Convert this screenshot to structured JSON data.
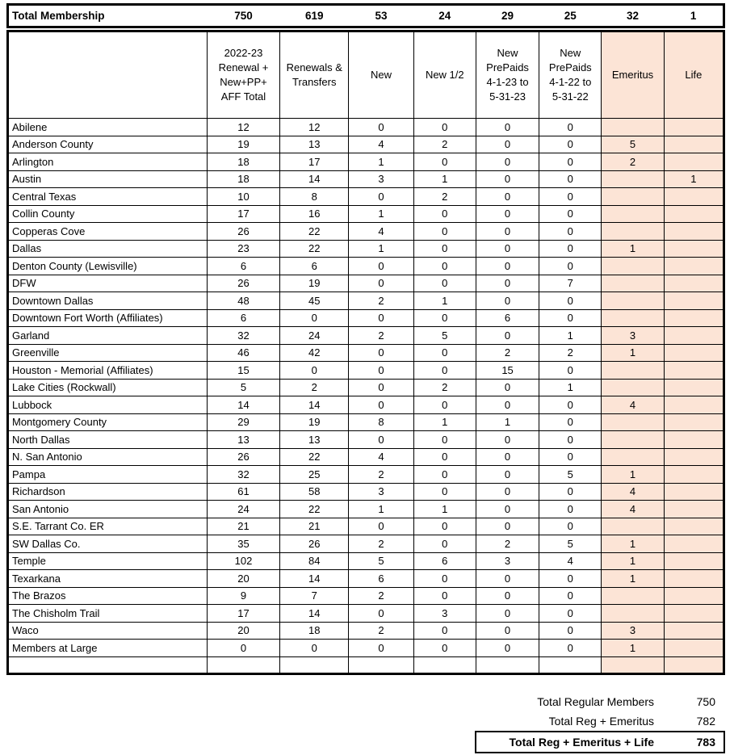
{
  "colors": {
    "highlight": "#FCE4D6",
    "border": "#000000",
    "text": "#000000",
    "background": "#FFFFFF"
  },
  "total_membership": {
    "label": "Total Membership",
    "values": [
      750,
      619,
      53,
      24,
      29,
      25,
      32,
      1
    ]
  },
  "header": {
    "columns": [
      {
        "lines": [
          "2022-23",
          "Renewal +",
          "New+PP+",
          "AFF Total"
        ],
        "bold": true,
        "highlight": false
      },
      {
        "lines": [
          "Renewals &",
          "Transfers"
        ],
        "bold": false,
        "highlight": false
      },
      {
        "lines": [
          "New"
        ],
        "bold": false,
        "highlight": false
      },
      {
        "lines": [
          "New 1/2"
        ],
        "bold": false,
        "highlight": false
      },
      {
        "lines": [
          "New",
          "PrePaids",
          "4-1-23 to",
          "5-31-23"
        ],
        "bold": false,
        "highlight": false
      },
      {
        "lines": [
          "New",
          "PrePaids",
          "4-1-22 to",
          "5-31-22"
        ],
        "bold": false,
        "highlight": false
      },
      {
        "lines": [
          "Emeritus"
        ],
        "bold": false,
        "highlight": true
      },
      {
        "lines": [
          "Life"
        ],
        "bold": false,
        "highlight": true
      }
    ]
  },
  "rows": [
    {
      "name": "Abilene",
      "values": [
        12,
        12,
        0,
        0,
        0,
        0,
        "",
        ""
      ]
    },
    {
      "name": "Anderson County",
      "values": [
        19,
        13,
        4,
        2,
        0,
        0,
        5,
        ""
      ]
    },
    {
      "name": "Arlington",
      "values": [
        18,
        17,
        1,
        0,
        0,
        0,
        2,
        ""
      ]
    },
    {
      "name": "Austin",
      "values": [
        18,
        14,
        3,
        1,
        0,
        0,
        "",
        1
      ]
    },
    {
      "name": "Central Texas",
      "values": [
        10,
        8,
        0,
        2,
        0,
        0,
        "",
        ""
      ]
    },
    {
      "name": "Collin County",
      "values": [
        17,
        16,
        1,
        0,
        0,
        0,
        "",
        ""
      ]
    },
    {
      "name": "Copperas Cove",
      "values": [
        26,
        22,
        4,
        0,
        0,
        0,
        "",
        ""
      ]
    },
    {
      "name": "Dallas",
      "values": [
        23,
        22,
        1,
        0,
        0,
        0,
        1,
        ""
      ]
    },
    {
      "name": "Denton County (Lewisville)",
      "values": [
        6,
        6,
        0,
        0,
        0,
        0,
        "",
        ""
      ]
    },
    {
      "name": "DFW",
      "values": [
        26,
        19,
        0,
        0,
        0,
        7,
        "",
        ""
      ]
    },
    {
      "name": "Downtown Dallas",
      "values": [
        48,
        45,
        2,
        1,
        0,
        0,
        "",
        ""
      ]
    },
    {
      "name": "Downtown Fort Worth (Affiliates)",
      "values": [
        6,
        0,
        0,
        0,
        6,
        0,
        "",
        ""
      ]
    },
    {
      "name": "Garland",
      "values": [
        32,
        24,
        2,
        5,
        0,
        1,
        3,
        ""
      ]
    },
    {
      "name": "Greenville",
      "values": [
        46,
        42,
        0,
        0,
        2,
        2,
        1,
        ""
      ]
    },
    {
      "name": "Houston - Memorial (Affiliates)",
      "values": [
        15,
        0,
        0,
        0,
        15,
        0,
        "",
        ""
      ]
    },
    {
      "name": "Lake Cities (Rockwall)",
      "values": [
        5,
        2,
        0,
        2,
        0,
        1,
        "",
        ""
      ]
    },
    {
      "name": "Lubbock",
      "values": [
        14,
        14,
        0,
        0,
        0,
        0,
        4,
        ""
      ]
    },
    {
      "name": "Montgomery County",
      "values": [
        29,
        19,
        8,
        1,
        1,
        0,
        "",
        ""
      ]
    },
    {
      "name": "North Dallas",
      "values": [
        13,
        13,
        0,
        0,
        0,
        0,
        "",
        ""
      ]
    },
    {
      "name": "N. San Antonio",
      "values": [
        26,
        22,
        4,
        0,
        0,
        0,
        "",
        ""
      ]
    },
    {
      "name": "Pampa",
      "values": [
        32,
        25,
        2,
        0,
        0,
        5,
        1,
        ""
      ]
    },
    {
      "name": "Richardson",
      "values": [
        61,
        58,
        3,
        0,
        0,
        0,
        4,
        ""
      ]
    },
    {
      "name": "San Antonio",
      "values": [
        24,
        22,
        1,
        1,
        0,
        0,
        4,
        ""
      ]
    },
    {
      "name": "S.E. Tarrant Co. ER",
      "values": [
        21,
        21,
        0,
        0,
        0,
        0,
        "",
        ""
      ]
    },
    {
      "name": "SW Dallas Co.",
      "values": [
        35,
        26,
        2,
        0,
        2,
        5,
        1,
        ""
      ]
    },
    {
      "name": "Temple",
      "values": [
        102,
        84,
        5,
        6,
        3,
        4,
        1,
        ""
      ]
    },
    {
      "name": "Texarkana",
      "values": [
        20,
        14,
        6,
        0,
        0,
        0,
        1,
        ""
      ]
    },
    {
      "name": "The Brazos",
      "values": [
        9,
        7,
        2,
        0,
        0,
        0,
        "",
        ""
      ]
    },
    {
      "name": "The Chisholm Trail",
      "values": [
        17,
        14,
        0,
        3,
        0,
        0,
        "",
        ""
      ]
    },
    {
      "name": "Waco",
      "values": [
        20,
        18,
        2,
        0,
        0,
        0,
        3,
        ""
      ]
    },
    {
      "name": "Members at Large",
      "values": [
        0,
        0,
        0,
        0,
        0,
        0,
        1,
        ""
      ]
    },
    {
      "name": "",
      "values": [
        "",
        "",
        "",
        "",
        "",
        "",
        "",
        ""
      ]
    }
  ],
  "summary": {
    "rows": [
      {
        "label": "Total Regular Members",
        "value": 750,
        "emphasis": false
      },
      {
        "label": "Total Reg + Emeritus",
        "value": 782,
        "emphasis": false
      },
      {
        "label": "Total Reg + Emeritus + Life",
        "value": 783,
        "emphasis": true
      }
    ]
  }
}
